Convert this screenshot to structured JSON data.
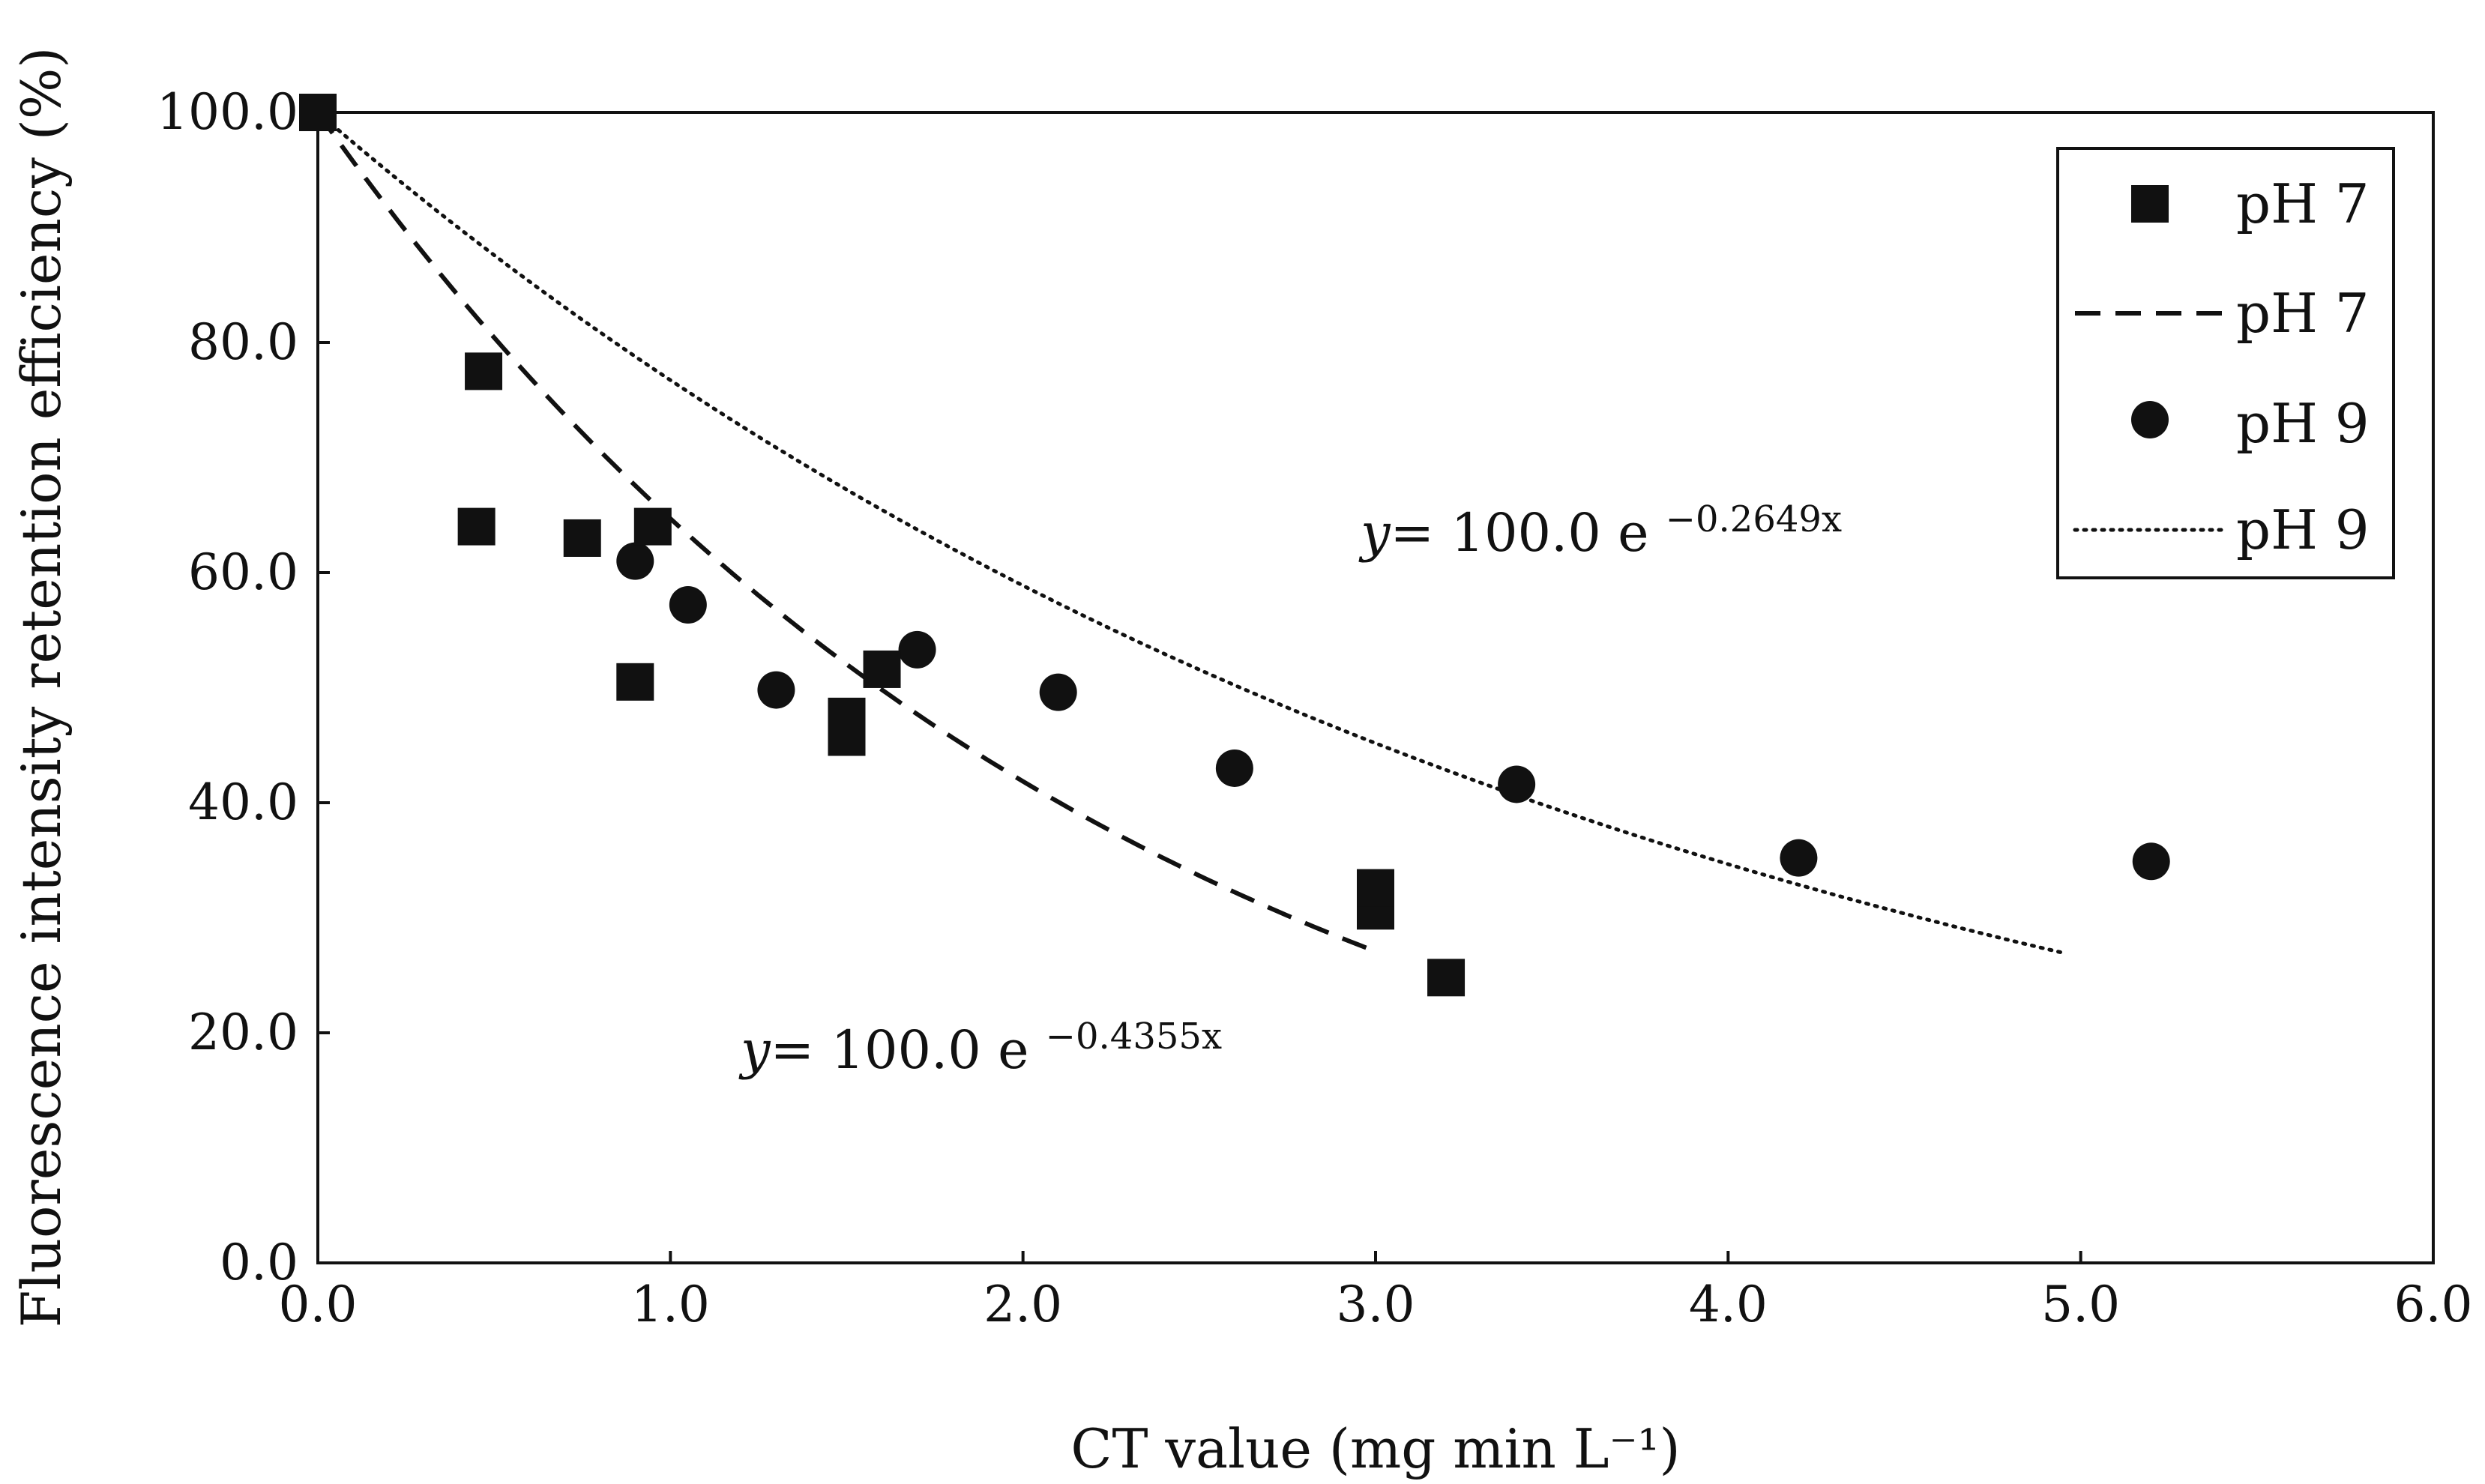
{
  "chart_data": {
    "type": "scatter",
    "title": "",
    "xlabel": "CT value (mg min L⁻¹)",
    "ylabel": "Fluorescence intensity retention efficiency (%)",
    "xlim": [
      0,
      6
    ],
    "ylim": [
      0,
      100
    ],
    "x_ticks": [
      "0.0",
      "1.0",
      "2.0",
      "3.0",
      "4.0",
      "5.0",
      "6.0"
    ],
    "y_ticks": [
      "0.0",
      "20.0",
      "40.0",
      "60.0",
      "80.0",
      "100.0"
    ],
    "grid": false,
    "legend_position": "top-right",
    "series": [
      {
        "name": "pH 7",
        "kind": "scatter",
        "marker": "square",
        "points": [
          {
            "x": 0.0,
            "y": 100.0
          },
          {
            "x": 0.45,
            "y": 64.0
          },
          {
            "x": 0.47,
            "y": 77.5
          },
          {
            "x": 0.75,
            "y": 63.0
          },
          {
            "x": 0.9,
            "y": 50.5
          },
          {
            "x": 0.95,
            "y": 64.0
          },
          {
            "x": 1.5,
            "y": 45.7
          },
          {
            "x": 1.5,
            "y": 47.5
          },
          {
            "x": 1.6,
            "y": 51.6
          },
          {
            "x": 3.0,
            "y": 30.6
          },
          {
            "x": 3.0,
            "y": 32.6
          },
          {
            "x": 3.2,
            "y": 24.8
          }
        ]
      },
      {
        "name": "pH 7",
        "kind": "line",
        "style": "dashed",
        "equation": "y = 100.0 e^(-0.4355x)",
        "a": 100.0,
        "k": -0.4355,
        "x_range": [
          0,
          3.0
        ]
      },
      {
        "name": "pH 9",
        "kind": "scatter",
        "marker": "circle",
        "points": [
          {
            "x": 0.9,
            "y": 61.0
          },
          {
            "x": 1.05,
            "y": 57.2
          },
          {
            "x": 1.3,
            "y": 49.8
          },
          {
            "x": 1.7,
            "y": 53.3
          },
          {
            "x": 2.1,
            "y": 49.6
          },
          {
            "x": 2.6,
            "y": 43.0
          },
          {
            "x": 3.4,
            "y": 41.6
          },
          {
            "x": 4.2,
            "y": 35.2
          },
          {
            "x": 5.2,
            "y": 34.9
          }
        ]
      },
      {
        "name": "pH 9",
        "kind": "line",
        "style": "dotted",
        "equation": "y = 100.0 e^(-0.2649x)",
        "a": 100.0,
        "k": -0.2649,
        "x_range": [
          0,
          4.95
        ]
      }
    ],
    "annotations": [
      {
        "id": "eq-ph9",
        "y_symbol": "y",
        "main": "= 100.0 e ",
        "exponent": "−0.2649x"
      },
      {
        "id": "eq-ph7",
        "y_symbol": "y",
        "main": "= 100.0 e ",
        "exponent": "−0.4355x"
      }
    ]
  }
}
